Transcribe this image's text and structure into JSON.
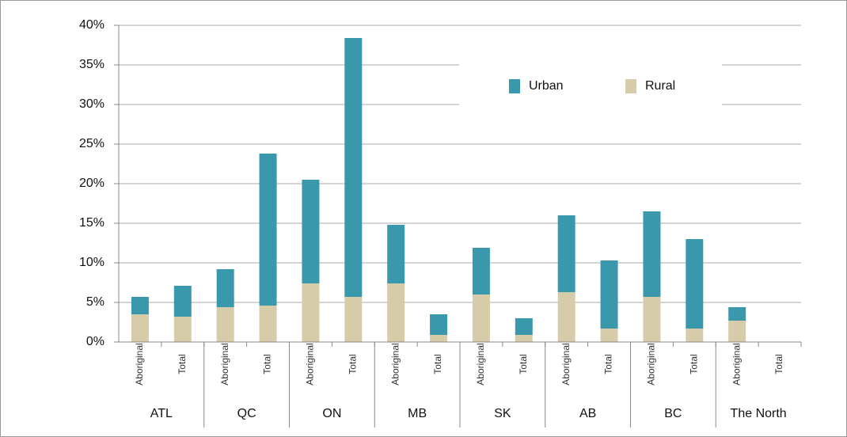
{
  "chart_data": {
    "type": "stacked_bar",
    "categories": [
      "Aboriginal",
      "Total",
      "Aboriginal",
      "Total",
      "Aboriginal",
      "Total",
      "Aboriginal",
      "Total",
      "Aboriginal",
      "Total",
      "Aboriginal",
      "Total",
      "Aboriginal",
      "Total",
      "Aboriginal",
      "Total"
    ],
    "groups": [
      "ATL",
      "QC",
      "ON",
      "MB",
      "SK",
      "AB",
      "BC",
      "The North"
    ],
    "series": [
      {
        "name": "Urban",
        "color": "#3a98ad",
        "values": [
          2.2,
          3.9,
          4.8,
          19.2,
          13.1,
          32.7,
          7.4,
          2.6,
          5.9,
          2.1,
          9.7,
          8.6,
          10.8,
          11.3,
          1.7,
          0
        ]
      },
      {
        "name": "Rural",
        "color": "#d6cca9",
        "values": [
          3.5,
          3.2,
          4.4,
          4.6,
          7.4,
          5.7,
          7.4,
          0.9,
          6.0,
          0.9,
          6.3,
          1.7,
          5.7,
          1.7,
          2.7,
          0
        ]
      }
    ],
    "ylim": [
      0,
      40
    ],
    "yticks": [
      {
        "value": 0,
        "label": "0%"
      },
      {
        "value": 5,
        "label": "5%"
      },
      {
        "value": 10,
        "label": "10%"
      },
      {
        "value": 15,
        "label": "15%"
      },
      {
        "value": 20,
        "label": "20%"
      },
      {
        "value": 25,
        "label": "25%"
      },
      {
        "value": 30,
        "label": "30%"
      },
      {
        "value": 35,
        "label": "35%"
      },
      {
        "value": 40,
        "label": "40%"
      }
    ],
    "grid": true,
    "legend": "upper right"
  }
}
